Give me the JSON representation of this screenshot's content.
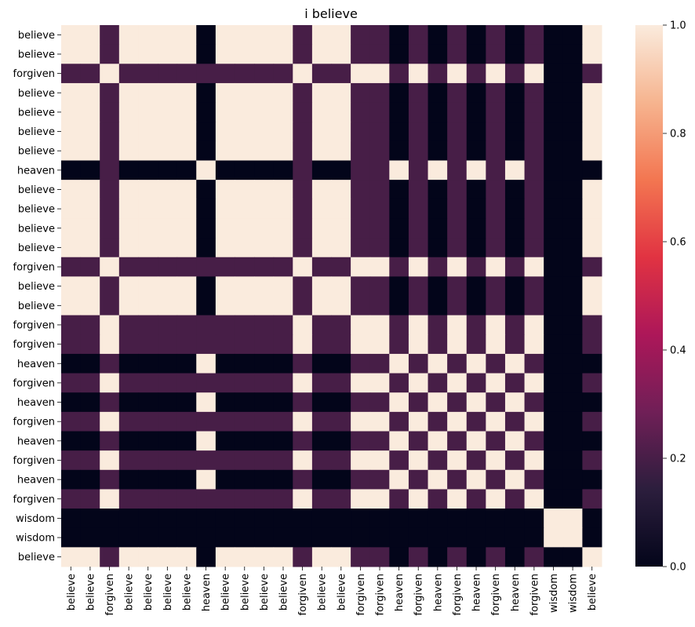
{
  "chart_data": {
    "type": "heatmap",
    "title": "i believe",
    "xlabel": "",
    "ylabel": "",
    "labels": [
      "believe",
      "believe",
      "forgiven",
      "believe",
      "believe",
      "believe",
      "believe",
      "heaven",
      "believe",
      "believe",
      "believe",
      "believe",
      "forgiven",
      "believe",
      "believe",
      "forgiven",
      "forgiven",
      "heaven",
      "forgiven",
      "heaven",
      "forgiven",
      "heaven",
      "forgiven",
      "heaven",
      "forgiven",
      "wisdom",
      "wisdom",
      "believe"
    ],
    "x_tick_labels": [
      "believe",
      "believe",
      "forgiven",
      "believe",
      "believe",
      "believe",
      "believe",
      "heaven",
      "believe",
      "believe",
      "believe",
      "believe",
      "forgiven",
      "believe",
      "believe",
      "forgiven",
      "forgiven",
      "heaven",
      "forgiven",
      "heaven",
      "forgiven",
      "heaven",
      "forgiven",
      "heaven",
      "forgiven",
      "wisdom",
      "wisdom",
      "believe"
    ],
    "y_tick_labels": [
      "believe",
      "believe",
      "forgiven",
      "believe",
      "believe",
      "believe",
      "believe",
      "heaven",
      "believe",
      "believe",
      "believe",
      "believe",
      "forgiven",
      "believe",
      "believe",
      "forgiven",
      "forgiven",
      "heaven",
      "forgiven",
      "heaven",
      "forgiven",
      "heaven",
      "forgiven",
      "heaven",
      "forgiven",
      "wisdom",
      "wisdom",
      "believe"
    ],
    "x_tick_stride": 1,
    "y_tick_stride": 1,
    "value_rule": "equal words = 1.0; believe vs forgiven = 0.2; forgiven vs heaven = 0.2; wisdom vs others = 0.0; all other pairs = 0.0",
    "pair_values": {
      "same": 1.0,
      "believe|forgiven": 0.2,
      "forgiven|heaven": 0.2,
      "default": 0.0
    },
    "colorbar": {
      "min": 0.0,
      "max": 1.0,
      "ticks": [
        "0.0",
        "0.2",
        "0.4",
        "0.6",
        "0.8",
        "1.0"
      ]
    },
    "colormap": [
      "#03051a",
      "#2c1e3d",
      "#701f57",
      "#ad1759",
      "#e13342",
      "#f37651",
      "#f6b48f",
      "#faebdd"
    ],
    "grid": false,
    "legend": "colorbar-right"
  }
}
